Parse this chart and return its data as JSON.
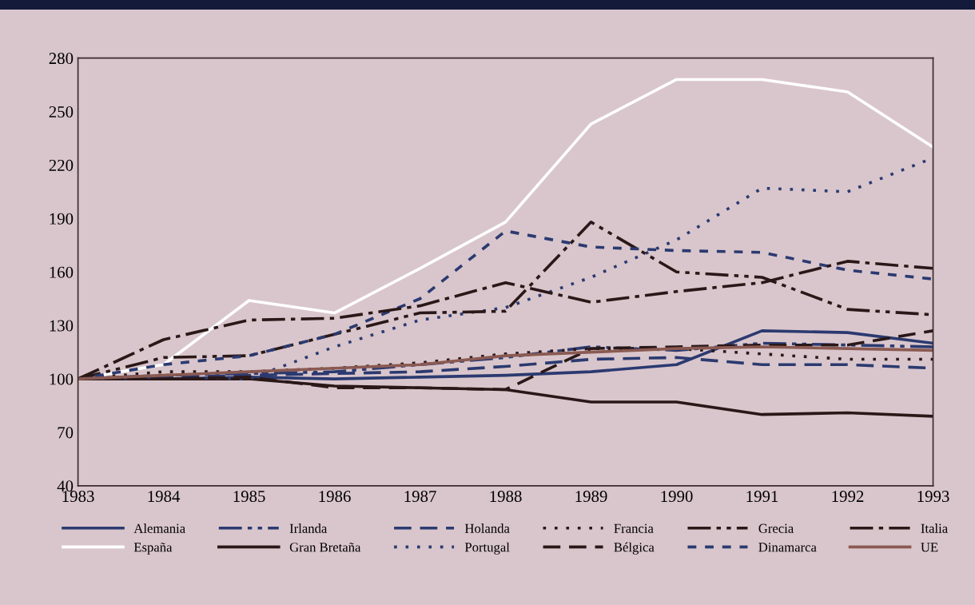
{
  "chart_data": {
    "type": "line",
    "x": [
      1983,
      1984,
      1985,
      1986,
      1987,
      1988,
      1989,
      1990,
      1991,
      1992,
      1993
    ],
    "xlim": [
      1983,
      1993
    ],
    "xticks": [
      1983,
      1984,
      1985,
      1986,
      1987,
      1988,
      1989,
      1990,
      1991,
      1992,
      1993
    ],
    "ylim": [
      40,
      280
    ],
    "yticks": [
      40,
      70,
      100,
      130,
      160,
      190,
      220,
      250,
      280
    ],
    "grid": false,
    "legend": "bottom",
    "marker": "none",
    "series": [
      {
        "name": "Alemania",
        "color": "#2b3a70",
        "line_style": "solid",
        "values": [
          100,
          100,
          101,
          100,
          101,
          102,
          104,
          108,
          127,
          126,
          120
        ]
      },
      {
        "name": "España",
        "color": "#ffffff",
        "line_style": "solid",
        "values": [
          100,
          108,
          144,
          137,
          162,
          188,
          243,
          268,
          268,
          261,
          230
        ]
      },
      {
        "name": "Irlanda",
        "color": "#2b3a70",
        "line_style": "dashdotdot",
        "values": [
          100,
          102,
          103,
          104,
          108,
          112,
          118,
          116,
          120,
          119,
          118
        ]
      },
      {
        "name": "Gran Bretaña",
        "color": "#2a1818",
        "line_style": "solid",
        "values": [
          100,
          100,
          100,
          96,
          95,
          94,
          87,
          87,
          80,
          81,
          79
        ]
      },
      {
        "name": "Holanda",
        "color": "#2b3a70",
        "line_style": "dashed",
        "values": [
          100,
          101,
          102,
          103,
          104,
          107,
          111,
          112,
          108,
          108,
          106
        ]
      },
      {
        "name": "Portugal",
        "color": "#2b3a70",
        "line_style": "dotted",
        "values": [
          100,
          101,
          100,
          118,
          133,
          140,
          157,
          178,
          207,
          205,
          224
        ]
      },
      {
        "name": "Francia",
        "color": "#2a1818",
        "line_style": "dotted",
        "values": [
          100,
          104,
          104,
          106,
          109,
          114,
          117,
          117,
          114,
          111,
          111
        ]
      },
      {
        "name": "Bélgica",
        "color": "#2a1818",
        "line_style": "dashed",
        "values": [
          100,
          100,
          101,
          95,
          95,
          94,
          117,
          118,
          119,
          119,
          127
        ]
      },
      {
        "name": "Grecia",
        "color": "#2a1818",
        "line_style": "dashdotdot",
        "values": [
          100,
          112,
          113,
          125,
          137,
          138,
          188,
          160,
          157,
          139,
          136
        ]
      },
      {
        "name": "Dinamarca",
        "color": "#2b3a70",
        "line_style": "dashed_short",
        "values": [
          100,
          108,
          113,
          125,
          145,
          183,
          174,
          172,
          171,
          161,
          156
        ]
      },
      {
        "name": "Italia",
        "color": "#2a1818",
        "line_style": "dashdot",
        "values": [
          100,
          122,
          133,
          134,
          141,
          154,
          143,
          149,
          154,
          166,
          162
        ]
      },
      {
        "name": "UE",
        "color": "#8a5a52",
        "line_style": "solid",
        "values": [
          100,
          102,
          104,
          106,
          108,
          113,
          115,
          117,
          118,
          117,
          116
        ]
      }
    ]
  }
}
